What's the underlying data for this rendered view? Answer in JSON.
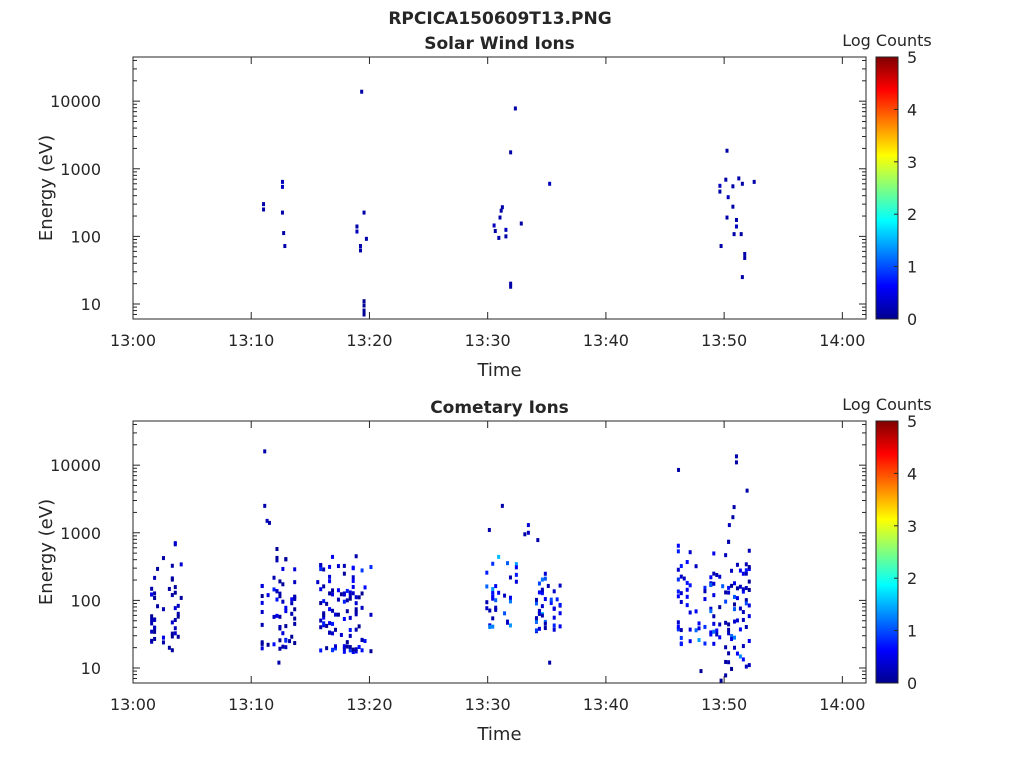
{
  "figure_title": "RPCICA150609T13.PNG",
  "chart_data": [
    {
      "type": "heatmap",
      "title": "Solar Wind Ions",
      "xlabel": "Time",
      "ylabel": "Energy (eV)",
      "x_ticks": [
        "13:00",
        "13:10",
        "13:20",
        "13:30",
        "13:40",
        "13:50",
        "14:00"
      ],
      "y_ticks": [
        "10",
        "100",
        "1000",
        "10000"
      ],
      "y_scale": "log",
      "ylim": [
        6,
        45000
      ],
      "xlim_minutes": [
        0,
        62
      ],
      "colorbar": {
        "label": "Log Counts",
        "ticks": [
          "0",
          "1",
          "2",
          "3",
          "4",
          "5"
        ],
        "range": [
          0,
          5
        ],
        "colormap": "jet"
      },
      "points": [
        [
          11.0,
          300,
          0.2
        ],
        [
          11.0,
          250,
          0.2
        ],
        [
          12.6,
          640,
          0.3
        ],
        [
          12.6,
          540,
          0.3
        ],
        [
          12.6,
          225,
          0.2
        ],
        [
          12.7,
          112,
          0.2
        ],
        [
          12.8,
          72,
          0.2
        ],
        [
          19.3,
          13800,
          0.2
        ],
        [
          18.9,
          140,
          0.2
        ],
        [
          18.9,
          118,
          0.3
        ],
        [
          19.2,
          72,
          0.2
        ],
        [
          19.2,
          62,
          0.2
        ],
        [
          19.5,
          225,
          0.2
        ],
        [
          19.7,
          92,
          0.2
        ],
        [
          19.5,
          11,
          0.1
        ],
        [
          19.5,
          9.5,
          0.1
        ],
        [
          19.5,
          8,
          0.1
        ],
        [
          19.5,
          7,
          0.1
        ],
        [
          32.3,
          7800,
          0.2
        ],
        [
          31.9,
          1750,
          0.2
        ],
        [
          30.5,
          145,
          0.3
        ],
        [
          30.6,
          120,
          0.2
        ],
        [
          30.9,
          95,
          0.2
        ],
        [
          31.0,
          190,
          0.2
        ],
        [
          31.2,
          270,
          0.2
        ],
        [
          31.1,
          240,
          0.2
        ],
        [
          31.5,
          125,
          0.3
        ],
        [
          31.5,
          100,
          0.2
        ],
        [
          32.8,
          155,
          0.2
        ],
        [
          31.9,
          20,
          0.2
        ],
        [
          31.9,
          18,
          0.2
        ],
        [
          35.2,
          600,
          0.3
        ],
        [
          50.2,
          1850,
          0.2
        ],
        [
          49.6,
          560,
          0.3
        ],
        [
          49.6,
          460,
          0.2
        ],
        [
          50.1,
          690,
          0.2
        ],
        [
          50.7,
          550,
          0.2
        ],
        [
          50.3,
          380,
          0.3
        ],
        [
          50.7,
          275,
          0.2
        ],
        [
          51.2,
          720,
          0.2
        ],
        [
          52.5,
          640,
          0.2
        ],
        [
          51.5,
          600,
          0.2
        ],
        [
          50.2,
          190,
          0.2
        ],
        [
          51.0,
          175,
          0.2
        ],
        [
          51.0,
          140,
          0.3
        ],
        [
          50.8,
          108,
          0.2
        ],
        [
          51.4,
          108,
          0.2
        ],
        [
          49.7,
          72,
          0.2
        ],
        [
          51.7,
          55,
          0.2
        ],
        [
          51.7,
          48,
          0.2
        ],
        [
          51.5,
          25,
          0.2
        ]
      ]
    },
    {
      "type": "heatmap",
      "title": "Cometary Ions",
      "xlabel": "Time",
      "ylabel": "Energy (eV)",
      "x_ticks": [
        "13:00",
        "13:10",
        "13:20",
        "13:30",
        "13:40",
        "13:50",
        "14:00"
      ],
      "y_ticks": [
        "10",
        "100",
        "1000",
        "10000"
      ],
      "y_scale": "log",
      "ylim": [
        6,
        45000
      ],
      "xlim_minutes": [
        0,
        62
      ],
      "colorbar": {
        "label": "Log Counts",
        "ticks": [
          "0",
          "1",
          "2",
          "3",
          "4",
          "5"
        ],
        "range": [
          0,
          5
        ],
        "colormap": "jet"
      },
      "clusters": [
        {
          "t": [
            1.2,
            4.0
          ],
          "e": [
            17,
            750
          ],
          "v": [
            0.1,
            0.6
          ]
        },
        {
          "t": [
            10.8,
            14.0
          ],
          "e": [
            18,
            700
          ],
          "v": [
            0.1,
            0.9
          ]
        },
        {
          "t": [
            15.5,
            20.0
          ],
          "e": [
            17,
            600
          ],
          "v": [
            0.1,
            1.3
          ]
        },
        {
          "t": [
            29.8,
            32.5
          ],
          "e": [
            40,
            600
          ],
          "v": [
            0.2,
            1.8
          ]
        },
        {
          "t": [
            34.0,
            36.0
          ],
          "e": [
            35,
            300
          ],
          "v": [
            0.2,
            1.8
          ]
        },
        {
          "t": [
            46.0,
            49.5
          ],
          "e": [
            22,
            1100
          ],
          "v": [
            0.2,
            1.4
          ]
        },
        {
          "t": [
            49.5,
            52.0
          ],
          "e": [
            7,
            1300
          ],
          "v": [
            0.1,
            1.5
          ]
        }
      ],
      "points": [
        [
          11.1,
          16000,
          0.2
        ],
        [
          11.1,
          2500,
          0.2
        ],
        [
          11.3,
          1500,
          0.3
        ],
        [
          11.5,
          1400,
          0.2
        ],
        [
          12.3,
          12,
          0.2
        ],
        [
          13.2,
          25,
          0.2
        ],
        [
          30.1,
          1100,
          0.2
        ],
        [
          31.2,
          2500,
          0.2
        ],
        [
          33.4,
          1300,
          0.4
        ],
        [
          33.4,
          1000,
          0.3
        ],
        [
          33.1,
          950,
          0.2
        ],
        [
          34.2,
          780,
          0.2
        ],
        [
          35.2,
          12,
          0.2
        ],
        [
          46.1,
          8500,
          0.2
        ],
        [
          51.0,
          13500,
          0.2
        ],
        [
          51.0,
          11000,
          0.2
        ],
        [
          51.9,
          4200,
          0.2
        ],
        [
          50.8,
          2400,
          0.2
        ],
        [
          50.7,
          1700,
          0.2
        ],
        [
          50.4,
          1300,
          0.3
        ],
        [
          49.7,
          6.5,
          0.1
        ],
        [
          48.0,
          9,
          0.1
        ]
      ]
    }
  ]
}
